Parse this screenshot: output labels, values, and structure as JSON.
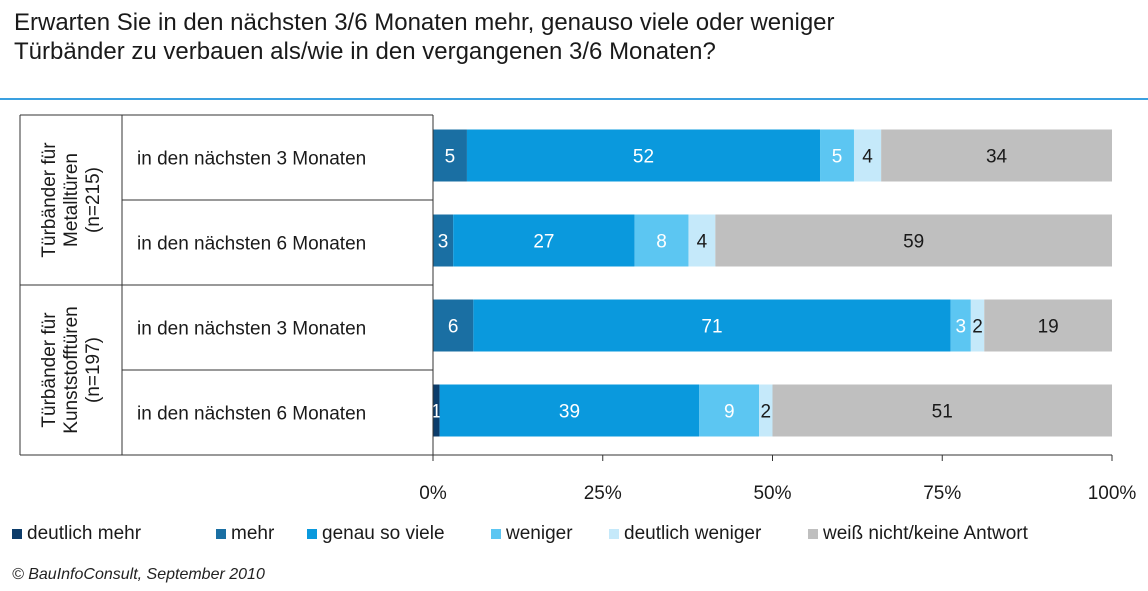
{
  "title_line1": "Erwarten Sie in den nächsten 3/6 Monaten mehr, genauso viele oder weniger",
  "title_line2": "Türbänder zu verbauen als/wie in den vergangenen 3/6 Monaten?",
  "source": "© BauInfoConsult, September 2010",
  "colors": {
    "deutlich_mehr": "#0c3c6a",
    "mehr": "#1a6fa3",
    "genau_so_viele": "#0a99dd",
    "weniger": "#5cc6f2",
    "deutlich_weniger": "#c5e9fa",
    "weiss_nicht": "#bfbfbf"
  },
  "chart_data": {
    "type": "bar",
    "orientation": "horizontal",
    "stacked": "percent",
    "groups": [
      {
        "label_lines": [
          "Türbänder für",
          "Metalltüren",
          "(n=215)"
        ],
        "rows": [
          0,
          1
        ]
      },
      {
        "label_lines": [
          "Türbänder für",
          "Kunststofftüren",
          "(n=197)"
        ],
        "rows": [
          2,
          3
        ]
      }
    ],
    "categories": [
      "in den nächsten 3 Monaten",
      "in den nächsten 6 Monaten",
      "in den nächsten 3 Monaten",
      "in den nächsten 6 Monaten"
    ],
    "series": [
      {
        "name": "deutlich mehr",
        "values": [
          0,
          0,
          0,
          1
        ],
        "labels": [
          "",
          "",
          "",
          "1"
        ]
      },
      {
        "name": "mehr",
        "values": [
          5,
          3,
          6,
          0
        ],
        "labels": [
          "5",
          "3",
          "6",
          ""
        ]
      },
      {
        "name": "genau so viele",
        "values": [
          52,
          27,
          71,
          39
        ],
        "labels": [
          "52",
          "27",
          "71",
          "39"
        ]
      },
      {
        "name": "weniger",
        "values": [
          5,
          8,
          3,
          9
        ],
        "labels": [
          "5",
          "8",
          "3",
          "9"
        ]
      },
      {
        "name": "deutlich weniger",
        "values": [
          4,
          4,
          2,
          2
        ],
        "labels": [
          "4",
          "4",
          "2",
          "2"
        ]
      },
      {
        "name": "weiß nicht/keine Antwort",
        "values": [
          34,
          59,
          19,
          51
        ],
        "labels": [
          "34",
          "59",
          "19",
          "51"
        ]
      }
    ],
    "xticks": [
      "0%",
      "25%",
      "50%",
      "75%",
      "100%"
    ],
    "xlim": [
      0,
      100
    ],
    "legend_position": "bottom"
  }
}
